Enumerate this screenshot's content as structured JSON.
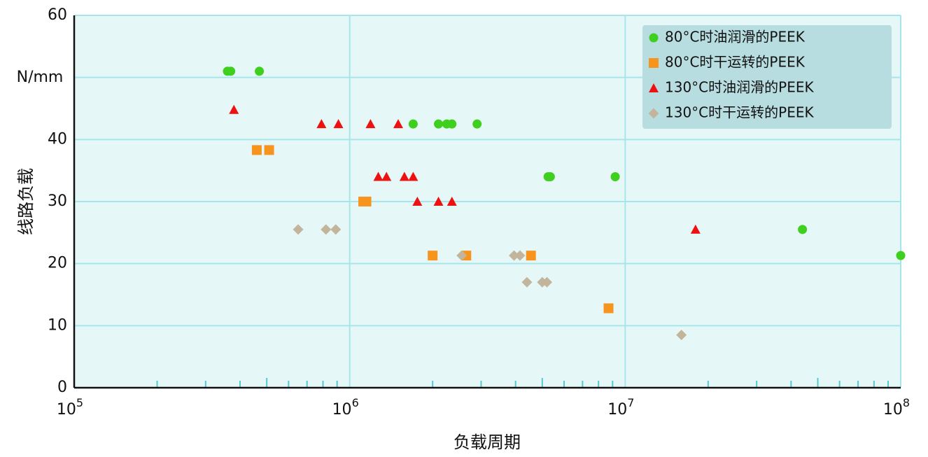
{
  "chart_data": {
    "type": "scatter",
    "title": "",
    "xlabel": "负载周期",
    "ylabel": "线路负载",
    "y_unit": "N/mm",
    "x_scale": "log",
    "xlim": [
      100000,
      100000000
    ],
    "ylim": [
      0,
      60
    ],
    "x_ticks": [
      {
        "value": 100000,
        "base": "10",
        "exp": "5"
      },
      {
        "value": 1000000,
        "base": "10",
        "exp": "6"
      },
      {
        "value": 10000000,
        "base": "10",
        "exp": "7"
      },
      {
        "value": 100000000,
        "base": "10",
        "exp": "8"
      }
    ],
    "y_ticks": [
      {
        "value": 0,
        "label": "0"
      },
      {
        "value": 10,
        "label": "10"
      },
      {
        "value": 20,
        "label": "20"
      },
      {
        "value": 30,
        "label": "30"
      },
      {
        "value": 40,
        "label": "40"
      },
      {
        "value": 60,
        "label": "60"
      }
    ],
    "y_gridlines": [
      10,
      20,
      30,
      40,
      50,
      60
    ],
    "grid": true,
    "legend_position": "top-right",
    "colors": {
      "plot_background": "#e6f7f7",
      "grid": "#a6e6ea",
      "axis": "#111111",
      "legend_background": "#b8dde0"
    },
    "series": [
      {
        "name": "80°C时油润滑的PEEK",
        "marker": "circle",
        "color": "#3fcf1e",
        "x": [
          360000,
          370000,
          470000,
          1700000,
          2100000,
          2250000,
          2350000,
          2900000,
          5250000,
          5350000,
          9200000,
          44000000,
          100000000
        ],
        "y": [
          51,
          51,
          51,
          42.5,
          42.5,
          42.5,
          42.5,
          42.5,
          34,
          34,
          34,
          25.5,
          21.3
        ]
      },
      {
        "name": "80°C时干运转的PEEK",
        "marker": "square",
        "color": "#f7941d",
        "x": [
          460000,
          510000,
          1120000,
          1150000,
          2000000,
          2650000,
          4550000,
          8700000
        ],
        "y": [
          38.3,
          38.3,
          30,
          30,
          21.3,
          21.3,
          21.3,
          12.8
        ]
      },
      {
        "name": "130°C时油润滑的PEEK",
        "marker": "triangle",
        "color": "#ee1111",
        "x": [
          380000,
          790000,
          910000,
          1190000,
          1500000,
          1270000,
          1360000,
          1580000,
          1700000,
          1760000,
          2100000,
          2350000,
          18000000
        ],
        "y": [
          44.8,
          42.5,
          42.5,
          42.5,
          42.5,
          34,
          34,
          34,
          34,
          30,
          30,
          30,
          25.5
        ]
      },
      {
        "name": "130°C时干运转的PEEK",
        "marker": "diamond",
        "color": "#c2b59b",
        "x": [
          650000,
          820000,
          890000,
          2550000,
          3950000,
          4150000,
          4400000,
          5000000,
          5200000,
          16000000
        ],
        "y": [
          25.5,
          25.5,
          25.5,
          21.3,
          21.3,
          21.3,
          17,
          17,
          17,
          8.5
        ]
      }
    ]
  }
}
